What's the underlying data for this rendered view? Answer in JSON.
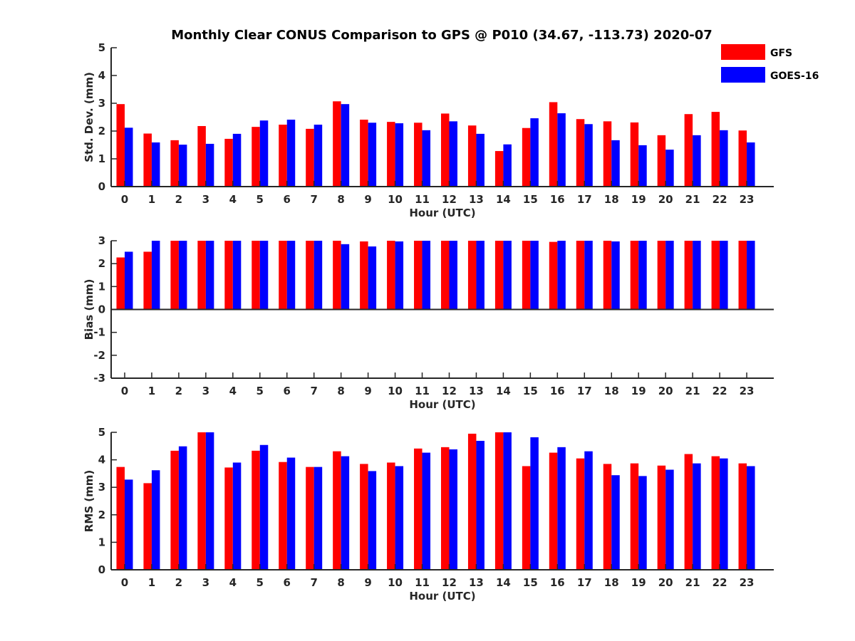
{
  "title": "Monthly Clear CONUS Comparison to GPS @ P010 (34.67, -113.73) 2020-07",
  "legend": {
    "placement": "top-right",
    "entries": [
      {
        "label": "GFS",
        "color": "#ff0000"
      },
      {
        "label": "GOES-16",
        "color": "#0000ff"
      }
    ]
  },
  "chart_data": [
    {
      "type": "bar",
      "xlabel": "Hour (UTC)",
      "ylabel": "Std. Dev. (mm)",
      "ylim": [
        0,
        5
      ],
      "yticks": [
        0,
        1,
        2,
        3,
        4,
        5
      ],
      "grid": false,
      "categories": [
        "0",
        "1",
        "2",
        "3",
        "4",
        "5",
        "6",
        "7",
        "8",
        "9",
        "10",
        "11",
        "12",
        "13",
        "14",
        "15",
        "16",
        "17",
        "18",
        "19",
        "20",
        "21",
        "22",
        "23"
      ],
      "series": [
        {
          "name": "GFS",
          "color": "#ff0000",
          "values": [
            2.97,
            1.91,
            1.67,
            2.18,
            1.72,
            2.15,
            2.23,
            2.08,
            3.07,
            2.41,
            2.33,
            2.3,
            2.63,
            2.2,
            1.28,
            2.11,
            3.04,
            2.43,
            2.35,
            2.31,
            1.85,
            2.61,
            2.69,
            2.02
          ]
        },
        {
          "name": "GOES-16",
          "color": "#0000ff",
          "values": [
            2.12,
            1.59,
            1.51,
            1.54,
            1.9,
            2.38,
            2.41,
            2.23,
            2.97,
            2.3,
            2.28,
            2.03,
            2.35,
            1.9,
            1.52,
            2.46,
            2.64,
            2.25,
            1.67,
            1.49,
            1.33,
            1.85,
            2.03,
            1.59
          ]
        }
      ]
    },
    {
      "type": "bar",
      "xlabel": "Hour (UTC)",
      "ylabel": "Bias (mm)",
      "ylim": [
        -3,
        3
      ],
      "yticks": [
        -3,
        -2,
        -1,
        0,
        1,
        2,
        3
      ],
      "grid": false,
      "categories": [
        "0",
        "1",
        "2",
        "3",
        "4",
        "5",
        "6",
        "7",
        "8",
        "9",
        "10",
        "11",
        "12",
        "13",
        "14",
        "15",
        "16",
        "17",
        "18",
        "19",
        "20",
        "21",
        "22",
        "23"
      ],
      "series": [
        {
          "name": "GFS",
          "color": "#ff0000",
          "values": [
            2.27,
            2.52,
            3.0,
            3.0,
            3.0,
            3.0,
            3.0,
            3.0,
            3.0,
            2.97,
            3.0,
            3.0,
            3.0,
            3.0,
            3.0,
            3.0,
            2.95,
            3.0,
            3.0,
            3.0,
            3.0,
            3.0,
            3.0,
            3.0
          ]
        },
        {
          "name": "GOES-16",
          "color": "#0000ff",
          "values": [
            2.52,
            3.0,
            3.0,
            3.0,
            3.0,
            3.0,
            3.0,
            3.0,
            2.85,
            2.75,
            2.97,
            3.0,
            3.0,
            3.0,
            3.0,
            3.0,
            3.0,
            3.0,
            2.97,
            3.0,
            3.0,
            3.0,
            3.0,
            3.0
          ]
        }
      ]
    },
    {
      "type": "bar",
      "xlabel": "Hour (UTC)",
      "ylabel": "RMS (mm)",
      "ylim": [
        0,
        5
      ],
      "yticks": [
        0,
        1,
        2,
        3,
        4,
        5
      ],
      "grid": false,
      "categories": [
        "0",
        "1",
        "2",
        "3",
        "4",
        "5",
        "6",
        "7",
        "8",
        "9",
        "10",
        "11",
        "12",
        "13",
        "14",
        "15",
        "16",
        "17",
        "18",
        "19",
        "20",
        "21",
        "22",
        "23"
      ],
      "series": [
        {
          "name": "GFS",
          "color": "#ff0000",
          "values": [
            3.74,
            3.15,
            4.33,
            5.0,
            3.72,
            4.33,
            3.92,
            3.74,
            4.31,
            3.85,
            3.9,
            4.41,
            4.46,
            4.95,
            5.0,
            3.77,
            4.26,
            4.05,
            3.85,
            3.87,
            3.79,
            4.21,
            4.13,
            3.87
          ]
        },
        {
          "name": "GOES-16",
          "color": "#0000ff",
          "values": [
            3.28,
            3.62,
            4.49,
            5.0,
            3.9,
            4.54,
            4.08,
            3.74,
            4.13,
            3.59,
            3.77,
            4.26,
            4.38,
            4.69,
            5.0,
            4.82,
            4.46,
            4.31,
            3.44,
            3.41,
            3.64,
            3.87,
            4.05,
            3.77
          ]
        }
      ]
    }
  ]
}
